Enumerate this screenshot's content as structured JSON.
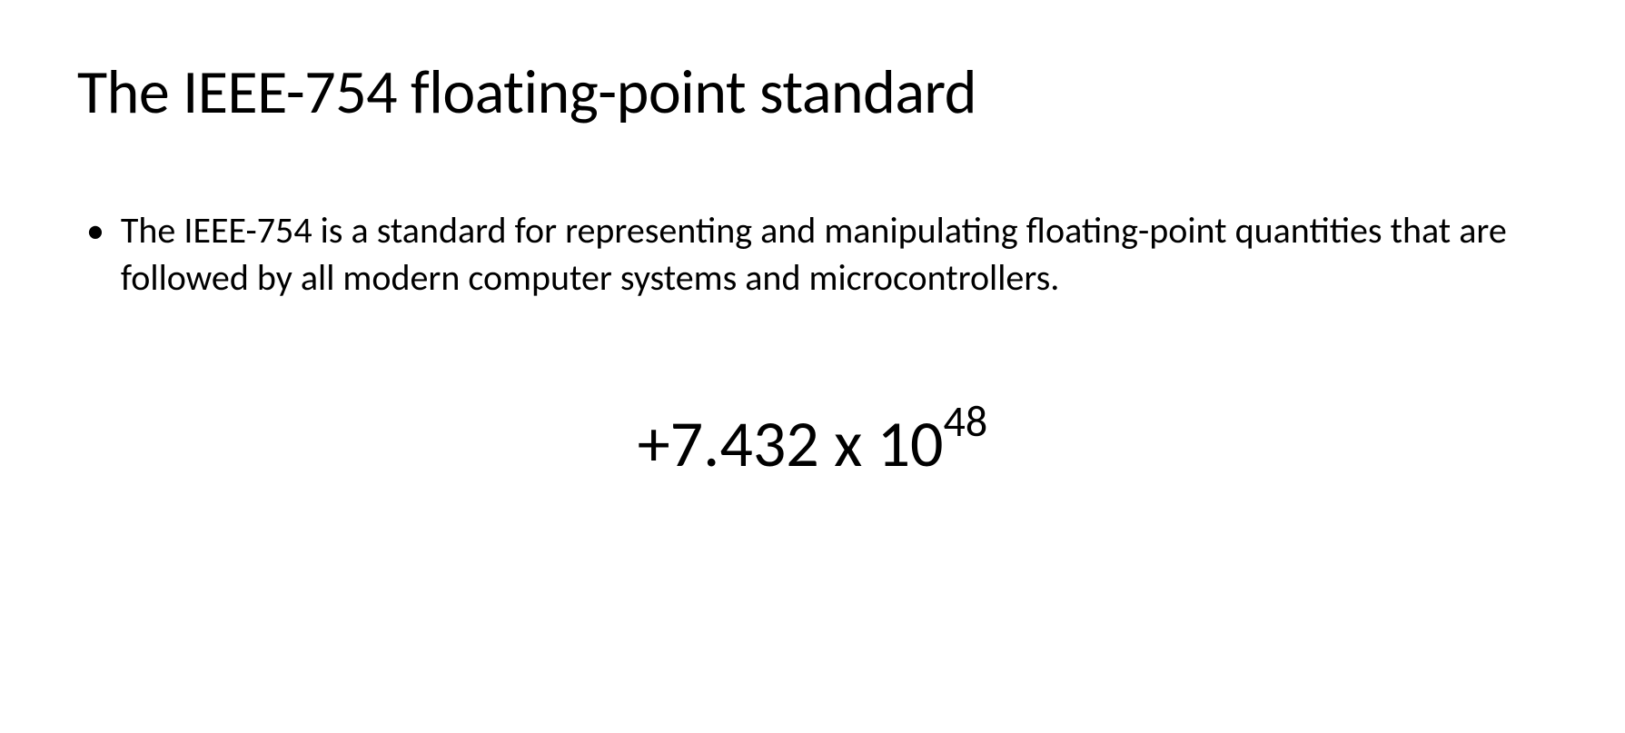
{
  "slide": {
    "title": "The IEEE-754 floating-point standard",
    "bullet": {
      "marker": "•",
      "text": "The IEEE-754 is a standard for representing and manipulating floating-point quantities that are followed by all modern computer systems and microcontrollers."
    },
    "formula": {
      "sign": "+",
      "mantissa": "7.432",
      "times": " x ",
      "base": "10",
      "exponent": "48"
    }
  },
  "styling": {
    "background_color": "#ffffff",
    "title_color": "#000000",
    "title_fontsize": 68,
    "body_color": "#000000",
    "body_fontsize": 40,
    "formula_fontsize": 72,
    "exponent_fontsize": 48,
    "font_family": "Calibri"
  }
}
